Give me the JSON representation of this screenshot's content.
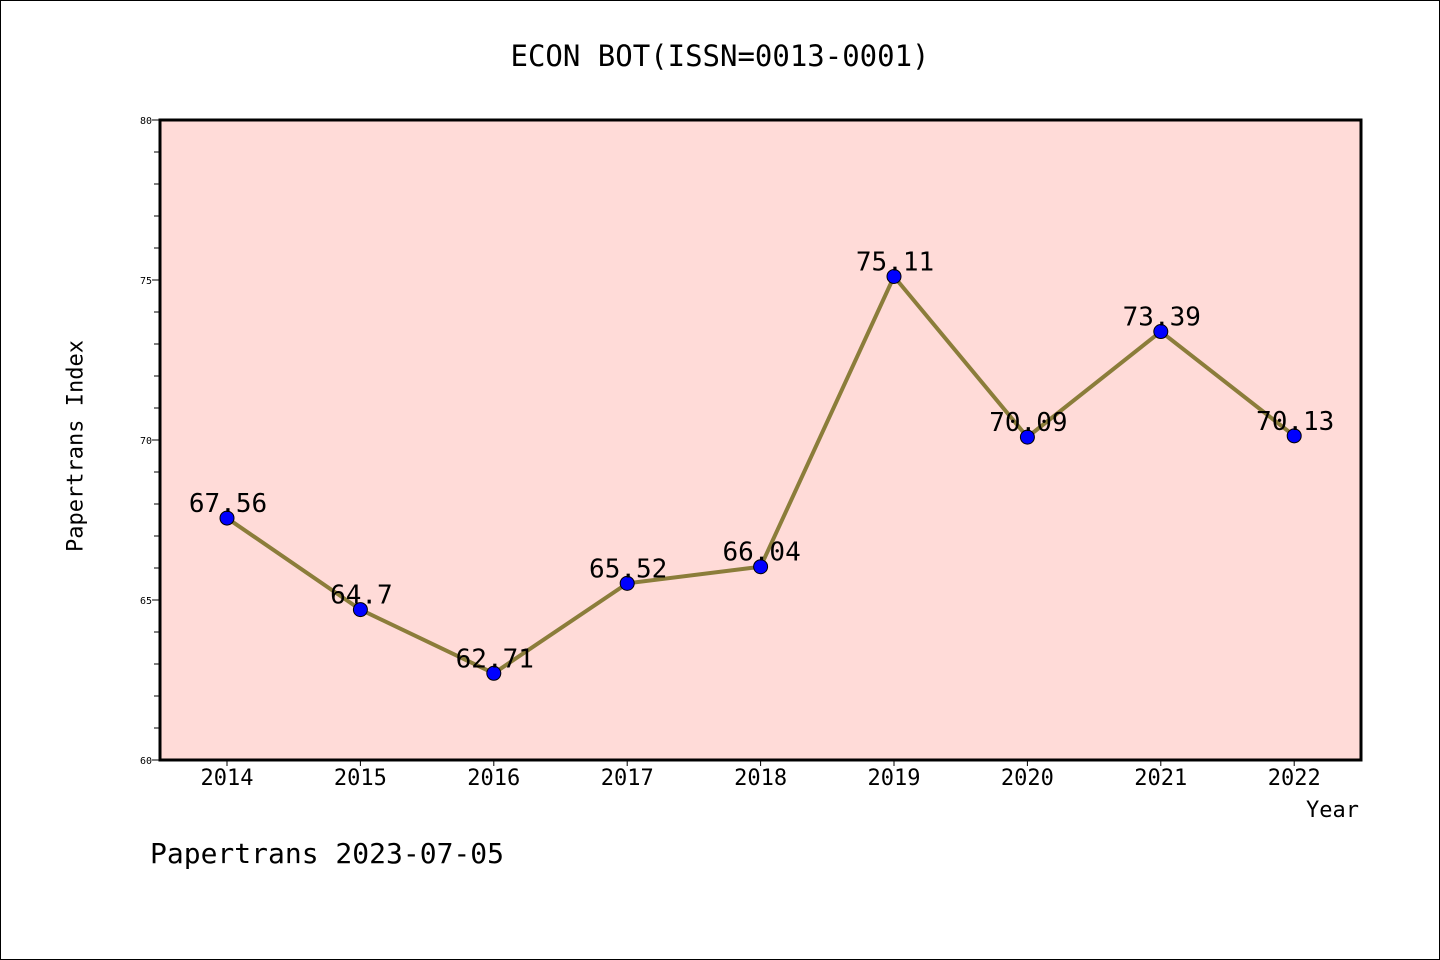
{
  "chart_data": {
    "type": "line",
    "title": "ECON BOT(ISSN=0013-0001)",
    "xlabel": "Year",
    "ylabel": "Papertrans Index",
    "categories": [
      "2014",
      "2015",
      "2016",
      "2017",
      "2018",
      "2019",
      "2020",
      "2021",
      "2022"
    ],
    "series": [
      {
        "values": [
          67.56,
          64.7,
          62.71,
          65.52,
          66.04,
          75.11,
          70.09,
          73.39,
          70.13
        ],
        "data_labels": [
          "67.56",
          "64.7",
          "62.71",
          "65.52",
          "66.04",
          "75.11",
          "70.09",
          "73.39",
          "70.13"
        ],
        "line_color": "#8B7D3A",
        "marker_color": "#0000FF"
      }
    ],
    "ylim": [
      60,
      80
    ],
    "y_ticks": [
      "60",
      "65",
      "70",
      "75",
      "80"
    ],
    "y_minor_step": 1,
    "plot_background": "#FFDBD8",
    "grid": false,
    "legend": "none"
  },
  "footer": {
    "text": "Papertrans 2023-07-05"
  }
}
